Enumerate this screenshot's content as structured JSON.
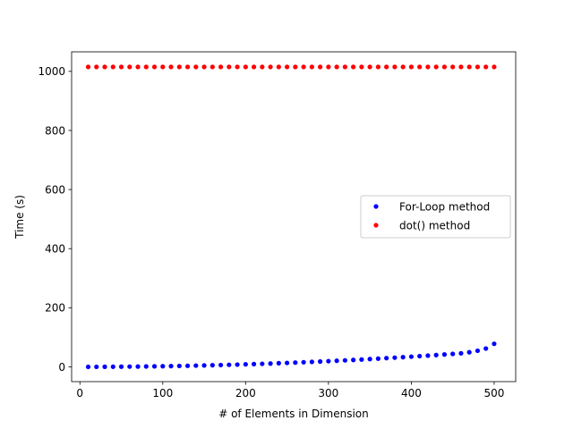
{
  "chart_data": {
    "type": "scatter",
    "title": "",
    "xlabel": "# of Elements in Dimension",
    "ylabel": "Time (s)",
    "xlim": [
      -10,
      526
    ],
    "ylim": [
      -50,
      1066
    ],
    "xticks": [
      0,
      100,
      200,
      300,
      400,
      500
    ],
    "yticks": [
      0,
      200,
      400,
      600,
      800,
      1000
    ],
    "grid": false,
    "legend": {
      "position": "center-right"
    },
    "x": [
      10,
      20,
      30,
      40,
      50,
      60,
      70,
      80,
      90,
      100,
      110,
      120,
      130,
      140,
      150,
      160,
      170,
      180,
      190,
      200,
      210,
      220,
      230,
      240,
      250,
      260,
      270,
      280,
      290,
      300,
      310,
      320,
      330,
      340,
      350,
      360,
      370,
      380,
      390,
      400,
      410,
      420,
      430,
      440,
      450,
      460,
      470,
      480,
      490,
      500
    ],
    "series": [
      {
        "name": "For-Loop method",
        "color": "#0000ff",
        "values": [
          0.0,
          0.1,
          0.2,
          0.4,
          0.6,
          0.9,
          1.1,
          1.4,
          1.8,
          2.2,
          2.6,
          3.1,
          3.6,
          4.2,
          4.8,
          5.5,
          6.2,
          6.9,
          7.7,
          8.5,
          9.4,
          10.3,
          11.3,
          12.3,
          13.3,
          14.4,
          15.6,
          16.8,
          18.0,
          19.3,
          20.6,
          22.0,
          23.4,
          24.8,
          26.3,
          27.9,
          29.5,
          31.1,
          32.8,
          34.5,
          36.3,
          38.1,
          40.0,
          41.9,
          43.8,
          45.8,
          49.5,
          54.5,
          62.0,
          78.0
        ]
      },
      {
        "name": "dot() method",
        "color": "#ff0000",
        "values": [
          1015,
          1015,
          1015,
          1015,
          1015,
          1015,
          1015,
          1015,
          1015,
          1015,
          1015,
          1015,
          1015,
          1015,
          1015,
          1015,
          1015,
          1015,
          1015,
          1015,
          1015,
          1015,
          1015,
          1015,
          1015,
          1015,
          1015,
          1015,
          1015,
          1015,
          1015,
          1015,
          1015,
          1015,
          1015,
          1015,
          1015,
          1015,
          1015,
          1015,
          1015,
          1015,
          1015,
          1015,
          1015,
          1015,
          1015,
          1015,
          1015,
          1015
        ]
      }
    ]
  }
}
